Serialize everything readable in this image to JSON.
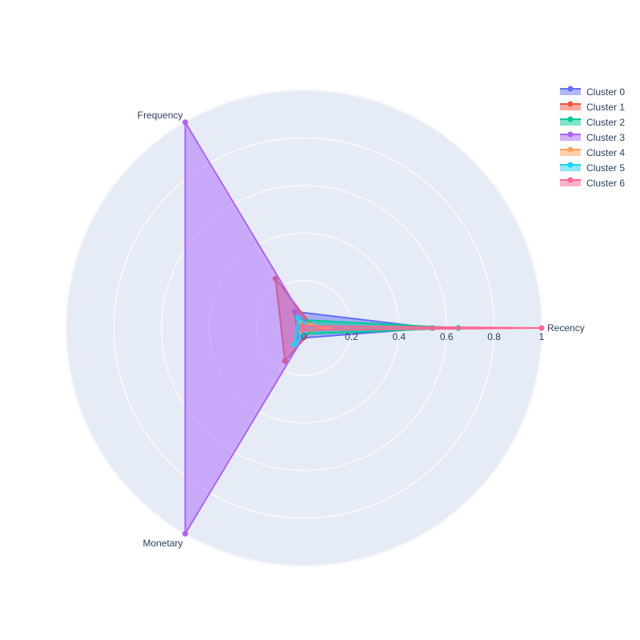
{
  "chart_data": {
    "type": "radar",
    "axes": [
      "Recency",
      "Frequency",
      "Monetary"
    ],
    "radial_range": [
      0,
      1
    ],
    "radial_ticks": [
      "0",
      "0.2",
      "0.4",
      "0.6",
      "0.8",
      "1"
    ],
    "legend_position": "top-right",
    "grid": true,
    "series": [
      {
        "name": "Cluster 0",
        "values": [
          0.54,
          0.08,
          0.05
        ],
        "color": "#636efa"
      },
      {
        "name": "Cluster 1",
        "values": [
          0.04,
          0.24,
          0.16
        ],
        "color": "#ef553b"
      },
      {
        "name": "Cluster 2",
        "values": [
          0.65,
          0.04,
          0.03
        ],
        "color": "#00cc96"
      },
      {
        "name": "Cluster 3",
        "values": [
          0.02,
          1.0,
          1.0
        ],
        "color": "#ab63fa"
      },
      {
        "name": "Cluster 4",
        "values": [
          0.1,
          0.03,
          0.02
        ],
        "color": "#ffa15a"
      },
      {
        "name": "Cluster 5",
        "values": [
          0.03,
          0.05,
          0.08
        ],
        "color": "#19d3f3"
      },
      {
        "name": "Cluster 6",
        "values": [
          1.0,
          0.01,
          0.01
        ],
        "color": "#ff6692"
      }
    ]
  }
}
